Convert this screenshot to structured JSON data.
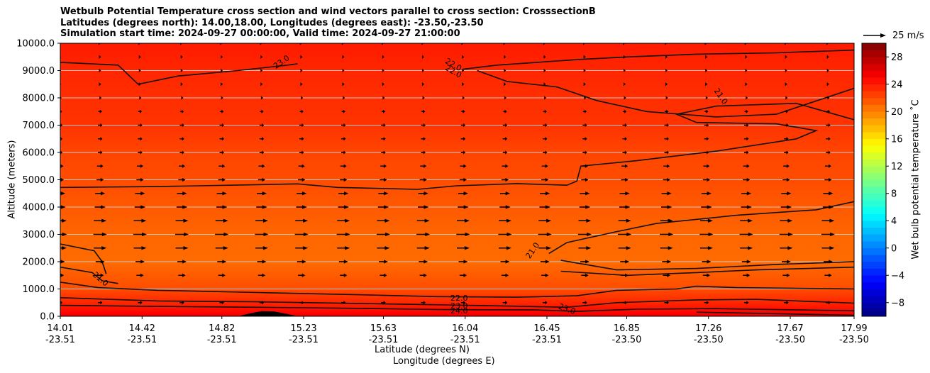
{
  "title_lines": [
    "Wetbulb Potential Temperature cross section and wind vectors parallel to cross section: CrosssectionB",
    "Latitudes (degrees north): 14.00,18.00, Longitudes (degrees east): -23.50,-23.50",
    "Simulation start time: 2024-09-27 00:00:00, Valid time: 2024-09-27 21:00:00"
  ],
  "quiver_key": "25 m/s",
  "colors": {
    "cmap": "jet",
    "contour_line": "#111111",
    "terrain": "#000000"
  },
  "chart_data": {
    "type": "heatmap",
    "ylabel": "Altitude (meters)",
    "xlabel_lines": [
      "Latitude (degrees N)",
      "Longitude (degrees E)"
    ],
    "colorbar_label": "Wet bulb potential temperature ˚C",
    "ylim": [
      0,
      10000
    ],
    "colorbar_range": [
      -10,
      30
    ],
    "y_ticks": [
      "0.0",
      "1000.0",
      "2000.0",
      "3000.0",
      "4000.0",
      "5000.0",
      "6000.0",
      "7000.0",
      "8000.0",
      "9000.0",
      "10000.0"
    ],
    "y_tick_values": [
      0,
      1000,
      2000,
      3000,
      4000,
      5000,
      6000,
      7000,
      8000,
      9000,
      10000
    ],
    "x_ticks": [
      {
        "lat": "14.01",
        "lon": "-23.51"
      },
      {
        "lat": "14.42",
        "lon": "-23.51"
      },
      {
        "lat": "14.82",
        "lon": "-23.51"
      },
      {
        "lat": "15.23",
        "lon": "-23.51"
      },
      {
        "lat": "15.63",
        "lon": "-23.51"
      },
      {
        "lat": "16.04",
        "lon": "-23.51"
      },
      {
        "lat": "16.45",
        "lon": "-23.51"
      },
      {
        "lat": "16.85",
        "lon": "-23.50"
      },
      {
        "lat": "17.26",
        "lon": "-23.50"
      },
      {
        "lat": "17.67",
        "lon": "-23.50"
      },
      {
        "lat": "17.99",
        "lon": "-23.50"
      }
    ],
    "x_tick_values": [
      14.01,
      14.42,
      14.82,
      15.23,
      15.63,
      16.04,
      16.45,
      16.85,
      17.26,
      17.67,
      17.99
    ],
    "xlim": [
      14.01,
      17.99
    ],
    "colorbar_ticks": [
      "−8",
      "−4",
      "0",
      "4",
      "8",
      "12",
      "16",
      "20",
      "24",
      "28"
    ],
    "colorbar_tick_values": [
      -8,
      -4,
      0,
      4,
      8,
      12,
      16,
      20,
      24,
      28
    ],
    "grid": "horizontal",
    "field_levels": [
      {
        "y": 0,
        "value": 26
      },
      {
        "y": 100,
        "value": 25
      },
      {
        "y": 500,
        "value": 23.5
      },
      {
        "y": 1000,
        "value": 22
      },
      {
        "y": 2000,
        "value": 20.8
      },
      {
        "y": 3000,
        "value": 21
      },
      {
        "y": 4000,
        "value": 21.5
      },
      {
        "y": 5000,
        "value": 22
      },
      {
        "y": 6000,
        "value": 22.3
      },
      {
        "y": 7000,
        "value": 23
      },
      {
        "y": 8000,
        "value": 23.2
      },
      {
        "y": 9000,
        "value": 23.5
      },
      {
        "y": 10000,
        "value": 24
      }
    ],
    "contour_labels": [
      {
        "text": "23.0",
        "x": 15.12,
        "y": 9300,
        "rotation": -35
      },
      {
        "text": "22.0",
        "x": 15.98,
        "y": 9200,
        "rotation": 30
      },
      {
        "text": "22.0",
        "x": 15.98,
        "y": 8950,
        "rotation": 30
      },
      {
        "text": "21.0",
        "x": 17.32,
        "y": 8050,
        "rotation": 55
      },
      {
        "text": "21.0",
        "x": 14.21,
        "y": 1350,
        "rotation": 40
      },
      {
        "text": "21.0",
        "x": 16.38,
        "y": 2400,
        "rotation": -55
      },
      {
        "text": "22.0",
        "x": 16.01,
        "y": 650,
        "rotation": 0
      },
      {
        "text": "23.0",
        "x": 16.01,
        "y": 360,
        "rotation": 0
      },
      {
        "text": "24.0",
        "x": 16.01,
        "y": 180,
        "rotation": 0
      },
      {
        "text": "23.0",
        "x": 16.55,
        "y": 250,
        "rotation": 20
      }
    ],
    "contours": [
      {
        "level": 21.0,
        "points": [
          [
            14.01,
            4720
          ],
          [
            14.5,
            4750
          ],
          [
            15.0,
            4820
          ],
          [
            15.2,
            4850
          ],
          [
            15.4,
            4720
          ],
          [
            15.8,
            4650
          ],
          [
            16.0,
            4780
          ],
          [
            16.3,
            4860
          ],
          [
            16.55,
            4800
          ],
          [
            16.6,
            4950
          ],
          [
            16.62,
            5500
          ],
          [
            16.9,
            5700
          ],
          [
            17.3,
            6050
          ],
          [
            17.7,
            6500
          ],
          [
            17.8,
            6800
          ],
          [
            17.6,
            7050
          ],
          [
            17.2,
            7100
          ],
          [
            17.1,
            7400
          ],
          [
            17.3,
            7700
          ],
          [
            17.7,
            7800
          ],
          [
            17.99,
            7200
          ]
        ]
      },
      {
        "level": 22.0,
        "points": [
          [
            16.03,
            9050
          ],
          [
            16.2,
            9200
          ],
          [
            16.6,
            9400
          ],
          [
            16.85,
            9500
          ],
          [
            17.2,
            9600
          ],
          [
            17.6,
            9650
          ],
          [
            17.99,
            9750
          ]
        ]
      },
      {
        "level": 23.0,
        "points": [
          [
            14.01,
            9300
          ],
          [
            14.3,
            9200
          ],
          [
            14.4,
            8500
          ],
          [
            14.6,
            8800
          ],
          [
            14.9,
            9000
          ],
          [
            15.15,
            9200
          ],
          [
            15.2,
            9250
          ]
        ]
      },
      {
        "level": 23.0,
        "points": [
          [
            16.1,
            9000
          ],
          [
            16.25,
            8600
          ],
          [
            16.5,
            8400
          ],
          [
            16.7,
            7900
          ],
          [
            16.95,
            7500
          ],
          [
            17.3,
            7300
          ],
          [
            17.6,
            7400
          ],
          [
            17.99,
            8350
          ]
        ]
      },
      {
        "level": 21.0,
        "points": [
          [
            14.01,
            2650
          ],
          [
            14.18,
            2400
          ],
          [
            14.22,
            2000
          ],
          [
            14.24,
            1550
          ]
        ]
      },
      {
        "level": 21.0,
        "points": [
          [
            14.01,
            1800
          ],
          [
            14.17,
            1600
          ],
          [
            14.22,
            1300
          ],
          [
            14.3,
            1200
          ]
        ]
      },
      {
        "level": 22.0,
        "points": [
          [
            14.01,
            1250
          ],
          [
            14.2,
            1050
          ],
          [
            14.5,
            950
          ],
          [
            15.0,
            870
          ],
          [
            15.5,
            790
          ],
          [
            15.9,
            720
          ],
          [
            16.3,
            700
          ],
          [
            16.6,
            750
          ],
          [
            16.8,
            950
          ],
          [
            17.1,
            1000
          ],
          [
            17.2,
            1100
          ],
          [
            17.4,
            1050
          ],
          [
            17.99,
            1000
          ]
        ]
      },
      {
        "level": 21.0,
        "points": [
          [
            16.46,
            2300
          ],
          [
            16.55,
            2700
          ],
          [
            16.8,
            3100
          ],
          [
            17.0,
            3400
          ],
          [
            17.4,
            3700
          ],
          [
            17.8,
            3900
          ],
          [
            17.99,
            4200
          ]
        ]
      },
      {
        "level": 21.0,
        "points": [
          [
            16.52,
            2050
          ],
          [
            16.8,
            1700
          ],
          [
            17.2,
            1750
          ],
          [
            17.6,
            1900
          ],
          [
            17.99,
            2000
          ]
        ]
      },
      {
        "level": 22.0,
        "points": [
          [
            16.52,
            1650
          ],
          [
            16.85,
            1500
          ],
          [
            17.2,
            1600
          ],
          [
            17.5,
            1700
          ],
          [
            17.99,
            1800
          ]
        ]
      },
      {
        "level": 23.0,
        "points": [
          [
            14.01,
            680
          ],
          [
            14.5,
            560
          ],
          [
            15.0,
            530
          ],
          [
            15.5,
            470
          ],
          [
            15.9,
            420
          ],
          [
            16.05,
            400
          ],
          [
            16.3,
            370
          ],
          [
            16.55,
            330
          ],
          [
            16.8,
            500
          ],
          [
            17.2,
            600
          ],
          [
            17.5,
            620
          ],
          [
            17.99,
            480
          ]
        ]
      },
      {
        "level": 24.0,
        "points": [
          [
            14.01,
            400
          ],
          [
            14.5,
            360
          ],
          [
            15.0,
            330
          ],
          [
            15.5,
            290
          ],
          [
            15.9,
            250
          ],
          [
            16.1,
            240
          ],
          [
            16.4,
            230
          ],
          [
            16.6,
            180
          ],
          [
            16.9,
            260
          ],
          [
            17.3,
            280
          ],
          [
            17.99,
            200
          ]
        ]
      },
      {
        "level": 24.0,
        "points": [
          [
            17.2,
            150
          ],
          [
            17.99,
            40
          ]
        ]
      }
    ],
    "terrain": [
      [
        14.9,
        0
      ],
      [
        14.97,
        120
      ],
      [
        15.02,
        190
      ],
      [
        15.08,
        180
      ],
      [
        15.15,
        80
      ],
      [
        15.2,
        0
      ]
    ],
    "wind": {
      "x": [
        14.01,
        14.21,
        14.41,
        14.62,
        14.82,
        15.02,
        15.22,
        15.43,
        15.63,
        15.83,
        16.03,
        16.24,
        16.44,
        16.64,
        16.84,
        17.05,
        17.25,
        17.45,
        17.65,
        17.86
      ],
      "y": [
        500,
        1500,
        2000,
        2500,
        3000,
        3500,
        4000,
        4500,
        5000,
        5500,
        6000,
        6500,
        7000,
        7500,
        8000,
        8500,
        9000,
        9500,
        10000
      ],
      "u_by_level": [
        5,
        8,
        10,
        14,
        15,
        14,
        12,
        11,
        8,
        7,
        5,
        5,
        5,
        4,
        3,
        2,
        2,
        2,
        1
      ]
    }
  }
}
